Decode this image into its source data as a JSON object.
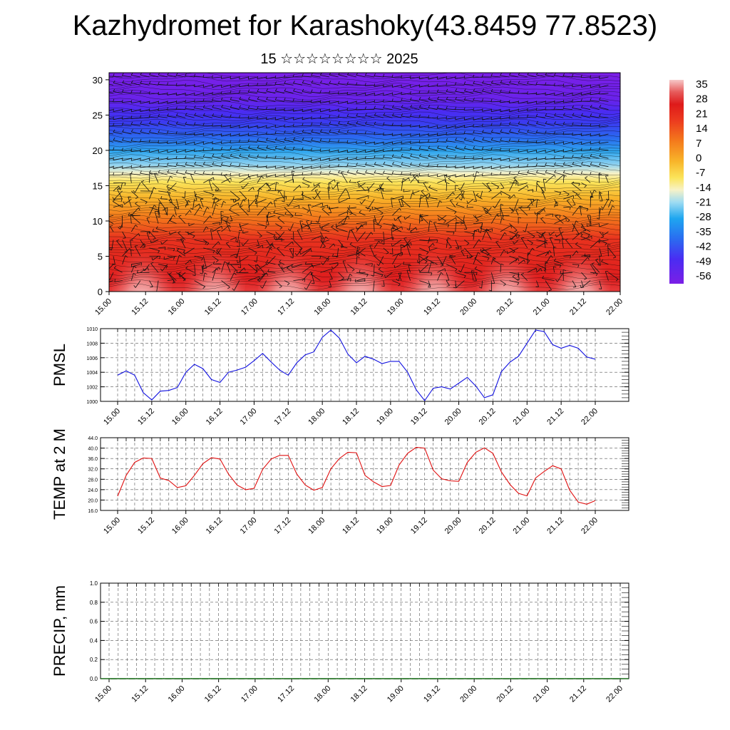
{
  "page": {
    "title": "Kazhydromet for Karashoky(43.8459 77.8523)",
    "subtitle": "15 ☆☆☆☆☆☆☆☆ 2025"
  },
  "chart_data": [
    {
      "type": "heatmap",
      "name": "temperature-height cross-section with wind barbs",
      "time_ticks": [
        "15.00",
        "15.12",
        "16.00",
        "16.12",
        "17.00",
        "17.12",
        "18.00",
        "18.12",
        "19.00",
        "19.12",
        "20.00",
        "20.12",
        "21.00",
        "21.12",
        "22.00"
      ],
      "y_ticks": [
        0,
        5,
        10,
        15,
        20,
        25,
        30
      ],
      "ylim": [
        0,
        31
      ],
      "colorbar": {
        "labels": [
          "35",
          "28",
          "21",
          "14",
          "7",
          "0",
          "-7",
          "-14",
          "-21",
          "-28",
          "-35",
          "-42",
          "-49",
          "-56"
        ],
        "range": [
          -60,
          38
        ]
      }
    },
    {
      "type": "line",
      "ylabel": "PMSL",
      "color": "#1010e0",
      "time_ticks": [
        "15.00",
        "15.12",
        "16.00",
        "16.12",
        "17.00",
        "17.12",
        "18.00",
        "18.12",
        "19.00",
        "19.12",
        "20.00",
        "20.12",
        "21.00",
        "21.12",
        "22.00"
      ],
      "y_ticks": [
        "1000",
        "1002",
        "1004",
        "1006",
        "1008",
        "1010"
      ],
      "ylim": [
        1000,
        1010
      ],
      "x_step_hours": 3,
      "values": [
        1003.6,
        1004.2,
        1003.6,
        1001.2,
        1000.2,
        1001.4,
        1001.5,
        1001.9,
        1004.0,
        1005.1,
        1004.5,
        1003.0,
        1002.6,
        1004.0,
        1004.3,
        1004.7,
        1005.6,
        1006.6,
        1005.4,
        1004.3,
        1003.6,
        1005.3,
        1006.4,
        1006.8,
        1008.8,
        1009.8,
        1008.7,
        1006.5,
        1005.3,
        1006.2,
        1005.8,
        1005.2,
        1005.5,
        1005.5,
        1004.0,
        1001.6,
        1000.1,
        1001.8,
        1002.0,
        1001.7,
        1002.5,
        1003.3,
        1002.1,
        1000.5,
        1000.9,
        1004.1,
        1005.4,
        1006.2,
        1008.0,
        1009.8,
        1009.6,
        1007.8,
        1007.3,
        1007.7,
        1007.3,
        1006.1,
        1005.8
      ]
    },
    {
      "type": "line",
      "ylabel": "TEMP at 2 M",
      "color": "#e01010",
      "time_ticks": [
        "15.00",
        "15.12",
        "16.00",
        "16.12",
        "17.00",
        "17.12",
        "18.00",
        "18.12",
        "19.00",
        "19.12",
        "20.00",
        "20.12",
        "21.00",
        "21.12",
        "22.00"
      ],
      "y_ticks": [
        "16.0",
        "20.0",
        "24.0",
        "28.0",
        "32.0",
        "36.0",
        "40.0",
        "44.0"
      ],
      "ylim": [
        16,
        44
      ],
      "x_step_hours": 3,
      "values": [
        21.5,
        29.5,
        34.5,
        36.2,
        36.0,
        28.5,
        27.5,
        24.8,
        25.5,
        29.5,
        34.0,
        36.3,
        35.8,
        30.0,
        25.8,
        24.0,
        24.5,
        31.8,
        35.8,
        37.2,
        37.2,
        30.0,
        25.8,
        23.8,
        24.8,
        32.0,
        36.0,
        38.4,
        38.2,
        29.5,
        27.0,
        25.2,
        25.6,
        33.5,
        38.0,
        40.3,
        40.0,
        31.5,
        28.2,
        27.4,
        27.2,
        34.5,
        38.4,
        40.1,
        38.0,
        30.8,
        26.0,
        22.6,
        21.6,
        28.5,
        31.0,
        33.2,
        32.0,
        23.8,
        19.2,
        18.4,
        19.8
      ]
    },
    {
      "type": "bar",
      "ylabel": "PRECIP, mm",
      "color": "#1a6b1a",
      "time_ticks": [
        "15.00",
        "15.12",
        "16.00",
        "16.12",
        "17.00",
        "17.12",
        "18.00",
        "18.12",
        "19.00",
        "19.12",
        "20.00",
        "20.12",
        "21.00",
        "21.12",
        "22.00"
      ],
      "y_ticks": [
        "0.0",
        "0.2",
        "0.4",
        "0.6",
        "0.8",
        "1.0"
      ],
      "ylim": [
        0,
        1
      ],
      "x_step_hours": 3,
      "values": [
        0,
        0,
        0,
        0,
        0,
        0,
        0,
        0,
        0,
        0,
        0,
        0,
        0,
        0,
        0,
        0,
        0,
        0,
        0,
        0,
        0,
        0,
        0,
        0,
        0,
        0,
        0,
        0,
        0,
        0,
        0,
        0,
        0,
        0,
        0,
        0,
        0,
        0,
        0,
        0,
        0,
        0,
        0,
        0,
        0,
        0,
        0,
        0,
        0,
        0,
        0,
        0,
        0,
        0,
        0,
        0
      ]
    }
  ]
}
